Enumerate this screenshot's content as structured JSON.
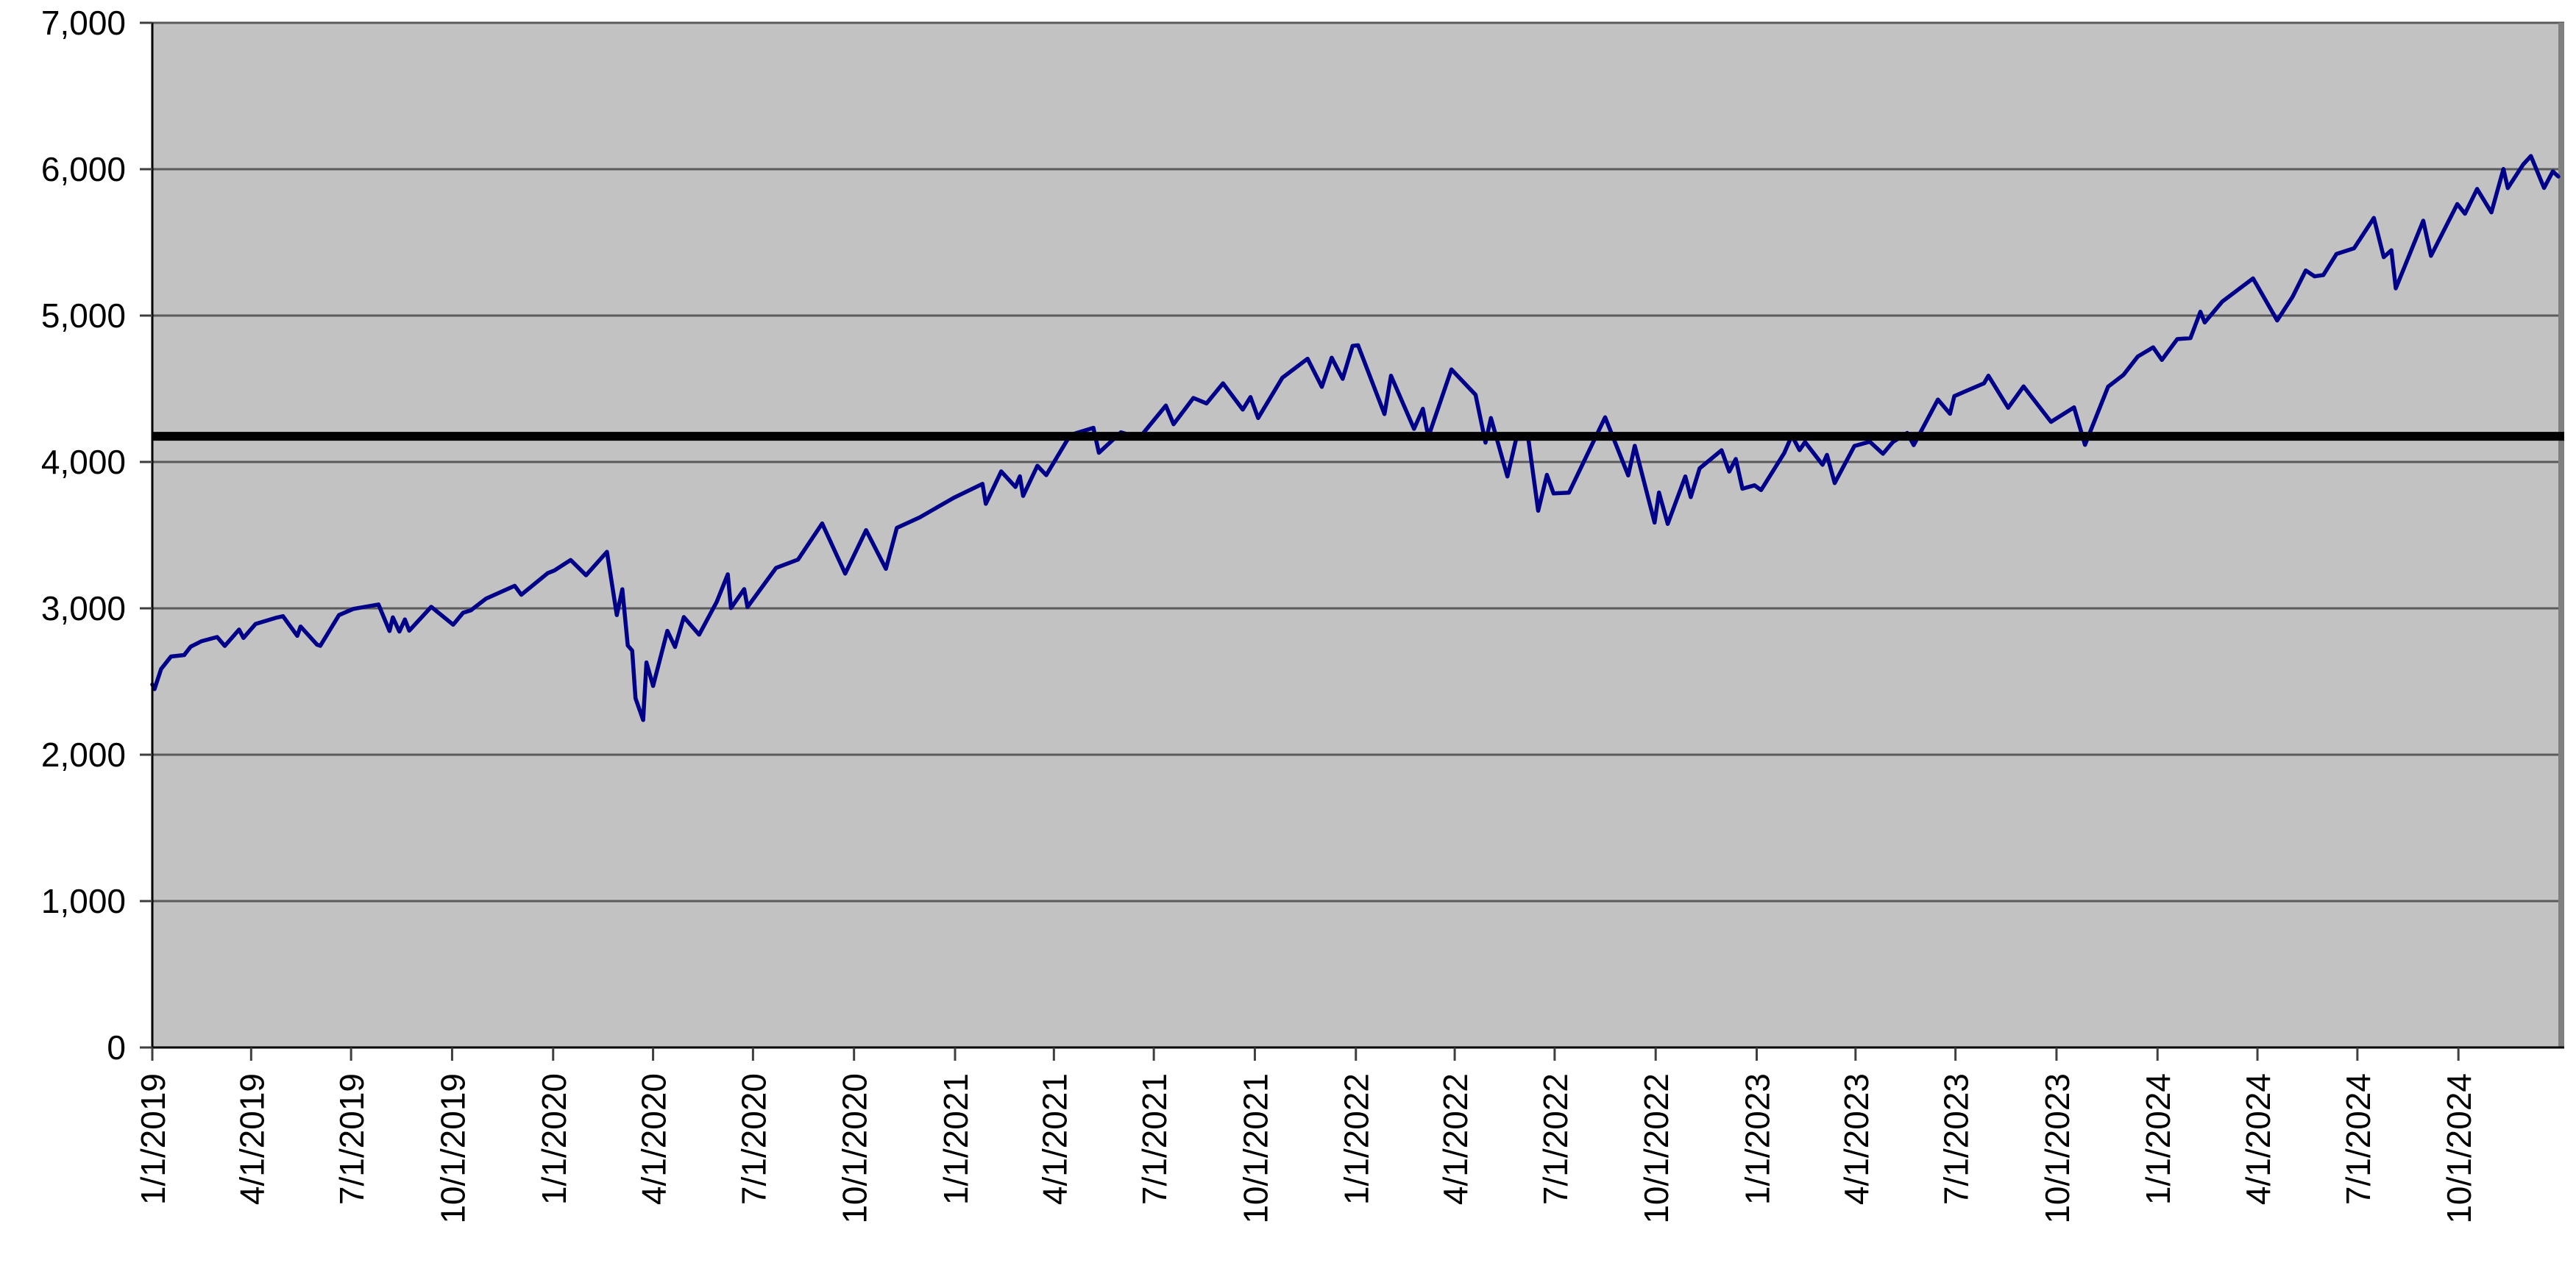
{
  "chart_data": {
    "type": "line",
    "title": "",
    "grid": true,
    "legend_position": "none",
    "colors": {
      "plot_bg": "#C2C2C2",
      "outer_bg": "#FFFFFF",
      "gridline": "#5A5A5A",
      "axis": "#000000",
      "tick": "#3F3F3F",
      "right_border": "#808080",
      "series": "#000088",
      "reference": "#000000"
    },
    "y_axis": {
      "min": 0,
      "max": 7000,
      "tick_interval": 1000,
      "tick_labels": [
        "0",
        "1,000",
        "2,000",
        "3,000",
        "4,000",
        "5,000",
        "6,000",
        "7,000"
      ]
    },
    "x_axis": {
      "start_date": "2019-01-01",
      "end_date": "2024-12-31",
      "tick_labels": [
        "1/1/2019",
        "4/1/2019",
        "7/1/2019",
        "10/1/2019",
        "1/1/2020",
        "4/1/2020",
        "7/1/2020",
        "10/1/2020",
        "1/1/2021",
        "4/1/2021",
        "7/1/2021",
        "10/1/2021",
        "1/1/2022",
        "4/1/2022",
        "7/1/2022",
        "10/1/2022",
        "1/1/2023",
        "4/1/2023",
        "7/1/2023",
        "10/1/2023",
        "1/1/2024",
        "4/1/2024",
        "7/1/2024",
        "10/1/2024"
      ]
    },
    "reference_line": {
      "value": 4175
    },
    "series": [
      {
        "points": [
          [
            "2019-01-01",
            2480
          ],
          [
            "2019-01-03",
            2448
          ],
          [
            "2019-01-09",
            2585
          ],
          [
            "2019-01-18",
            2671
          ],
          [
            "2019-01-30",
            2681
          ],
          [
            "2019-02-05",
            2738
          ],
          [
            "2019-02-15",
            2776
          ],
          [
            "2019-03-01",
            2804
          ],
          [
            "2019-03-08",
            2743
          ],
          [
            "2019-03-21",
            2855
          ],
          [
            "2019-03-25",
            2798
          ],
          [
            "2019-04-05",
            2893
          ],
          [
            "2019-04-23",
            2934
          ],
          [
            "2019-04-30",
            2946
          ],
          [
            "2019-05-13",
            2812
          ],
          [
            "2019-05-16",
            2876
          ],
          [
            "2019-05-31",
            2752
          ],
          [
            "2019-06-03",
            2744
          ],
          [
            "2019-06-20",
            2954
          ],
          [
            "2019-07-03",
            2996
          ],
          [
            "2019-07-26",
            3026
          ],
          [
            "2019-08-05",
            2845
          ],
          [
            "2019-08-08",
            2938
          ],
          [
            "2019-08-14",
            2841
          ],
          [
            "2019-08-19",
            2924
          ],
          [
            "2019-08-23",
            2847
          ],
          [
            "2019-09-12",
            3010
          ],
          [
            "2019-10-02",
            2888
          ],
          [
            "2019-10-11",
            2970
          ],
          [
            "2019-10-18",
            2986
          ],
          [
            "2019-11-01",
            3067
          ],
          [
            "2019-11-27",
            3154
          ],
          [
            "2019-12-03",
            3093
          ],
          [
            "2019-12-27",
            3240
          ],
          [
            "2020-01-02",
            3258
          ],
          [
            "2020-01-17",
            3330
          ],
          [
            "2020-01-31",
            3226
          ],
          [
            "2020-02-19",
            3386
          ],
          [
            "2020-02-28",
            2954
          ],
          [
            "2020-03-04",
            3130
          ],
          [
            "2020-03-09",
            2746
          ],
          [
            "2020-03-13",
            2711
          ],
          [
            "2020-03-16",
            2386
          ],
          [
            "2020-03-23",
            2237
          ],
          [
            "2020-03-26",
            2630
          ],
          [
            "2020-04-01",
            2470
          ],
          [
            "2020-04-14",
            2846
          ],
          [
            "2020-04-21",
            2736
          ],
          [
            "2020-04-29",
            2940
          ],
          [
            "2020-05-13",
            2820
          ],
          [
            "2020-05-29",
            3044
          ],
          [
            "2020-06-08",
            3232
          ],
          [
            "2020-06-11",
            3002
          ],
          [
            "2020-06-23",
            3131
          ],
          [
            "2020-06-26",
            3009
          ],
          [
            "2020-07-22",
            3276
          ],
          [
            "2020-08-11",
            3333
          ],
          [
            "2020-09-02",
            3580
          ],
          [
            "2020-09-23",
            3237
          ],
          [
            "2020-10-12",
            3534
          ],
          [
            "2020-10-30",
            3270
          ],
          [
            "2020-11-09",
            3550
          ],
          [
            "2020-11-30",
            3622
          ],
          [
            "2020-12-31",
            3756
          ],
          [
            "2021-01-26",
            3850
          ],
          [
            "2021-01-29",
            3714
          ],
          [
            "2021-02-12",
            3935
          ],
          [
            "2021-02-25",
            3829
          ],
          [
            "2021-03-01",
            3902
          ],
          [
            "2021-03-04",
            3768
          ],
          [
            "2021-03-17",
            3974
          ],
          [
            "2021-03-25",
            3910
          ],
          [
            "2021-04-16",
            4185
          ],
          [
            "2021-05-07",
            4233
          ],
          [
            "2021-05-12",
            4063
          ],
          [
            "2021-06-01",
            4202
          ],
          [
            "2021-06-18",
            4166
          ],
          [
            "2021-07-12",
            4385
          ],
          [
            "2021-07-19",
            4258
          ],
          [
            "2021-08-06",
            4437
          ],
          [
            "2021-08-18",
            4400
          ],
          [
            "2021-09-02",
            4537
          ],
          [
            "2021-09-20",
            4358
          ],
          [
            "2021-09-27",
            4443
          ],
          [
            "2021-10-04",
            4300
          ],
          [
            "2021-10-26",
            4575
          ],
          [
            "2021-11-18",
            4705
          ],
          [
            "2021-12-01",
            4513
          ],
          [
            "2021-12-10",
            4712
          ],
          [
            "2021-12-20",
            4568
          ],
          [
            "2021-12-29",
            4793
          ],
          [
            "2022-01-03",
            4797
          ],
          [
            "2022-01-27",
            4327
          ],
          [
            "2022-02-02",
            4589
          ],
          [
            "2022-02-23",
            4226
          ],
          [
            "2022-03-03",
            4363
          ],
          [
            "2022-03-08",
            4171
          ],
          [
            "2022-03-29",
            4632
          ],
          [
            "2022-04-20",
            4459
          ],
          [
            "2022-04-29",
            4132
          ],
          [
            "2022-05-04",
            4300
          ],
          [
            "2022-05-19",
            3901
          ],
          [
            "2022-05-27",
            4158
          ],
          [
            "2022-06-07",
            4160
          ],
          [
            "2022-06-16",
            3667
          ],
          [
            "2022-06-24",
            3912
          ],
          [
            "2022-06-30",
            3785
          ],
          [
            "2022-07-14",
            3790
          ],
          [
            "2022-08-16",
            4305
          ],
          [
            "2022-09-06",
            3908
          ],
          [
            "2022-09-12",
            4110
          ],
          [
            "2022-09-30",
            3586
          ],
          [
            "2022-10-04",
            3791
          ],
          [
            "2022-10-12",
            3577
          ],
          [
            "2022-10-28",
            3901
          ],
          [
            "2022-11-02",
            3760
          ],
          [
            "2022-11-10",
            3956
          ],
          [
            "2022-11-30",
            4080
          ],
          [
            "2022-12-07",
            3934
          ],
          [
            "2022-12-13",
            4020
          ],
          [
            "2022-12-19",
            3817
          ],
          [
            "2022-12-30",
            3840
          ],
          [
            "2023-01-05",
            3808
          ],
          [
            "2023-01-26",
            4060
          ],
          [
            "2023-02-02",
            4180
          ],
          [
            "2023-02-09",
            4081
          ],
          [
            "2023-02-14",
            4136
          ],
          [
            "2023-03-02",
            3981
          ],
          [
            "2023-03-06",
            4048
          ],
          [
            "2023-03-13",
            3856
          ],
          [
            "2023-03-31",
            4109
          ],
          [
            "2023-04-14",
            4138
          ],
          [
            "2023-04-26",
            4056
          ],
          [
            "2023-05-05",
            4136
          ],
          [
            "2023-05-18",
            4198
          ],
          [
            "2023-05-24",
            4115
          ],
          [
            "2023-06-15",
            4426
          ],
          [
            "2023-06-26",
            4329
          ],
          [
            "2023-06-30",
            4450
          ],
          [
            "2023-07-27",
            4537
          ],
          [
            "2023-07-31",
            4589
          ],
          [
            "2023-08-18",
            4370
          ],
          [
            "2023-09-01",
            4516
          ],
          [
            "2023-09-26",
            4274
          ],
          [
            "2023-10-17",
            4373
          ],
          [
            "2023-10-27",
            4117
          ],
          [
            "2023-11-17",
            4514
          ],
          [
            "2023-12-01",
            4595
          ],
          [
            "2023-12-14",
            4720
          ],
          [
            "2023-12-28",
            4783
          ],
          [
            "2024-01-05",
            4697
          ],
          [
            "2024-01-19",
            4839
          ],
          [
            "2024-01-31",
            4846
          ],
          [
            "2024-02-09",
            5026
          ],
          [
            "2024-02-13",
            4953
          ],
          [
            "2024-02-29",
            5096
          ],
          [
            "2024-03-28",
            5254
          ],
          [
            "2024-04-19",
            4967
          ],
          [
            "2024-05-03",
            5128
          ],
          [
            "2024-05-15",
            5308
          ],
          [
            "2024-05-23",
            5268
          ],
          [
            "2024-05-31",
            5277
          ],
          [
            "2024-06-12",
            5421
          ],
          [
            "2024-06-28",
            5460
          ],
          [
            "2024-07-16",
            5667
          ],
          [
            "2024-07-25",
            5399
          ],
          [
            "2024-08-01",
            5446
          ],
          [
            "2024-08-05",
            5186
          ],
          [
            "2024-08-30",
            5648
          ],
          [
            "2024-09-06",
            5408
          ],
          [
            "2024-09-30",
            5762
          ],
          [
            "2024-10-07",
            5696
          ],
          [
            "2024-10-18",
            5865
          ],
          [
            "2024-10-31",
            5705
          ],
          [
            "2024-11-11",
            6001
          ],
          [
            "2024-11-15",
            5871
          ],
          [
            "2024-11-29",
            6032
          ],
          [
            "2024-12-06",
            6090
          ],
          [
            "2024-12-18",
            5872
          ],
          [
            "2024-12-26",
            5985
          ],
          [
            "2024-12-31",
            5950
          ]
        ]
      }
    ]
  }
}
